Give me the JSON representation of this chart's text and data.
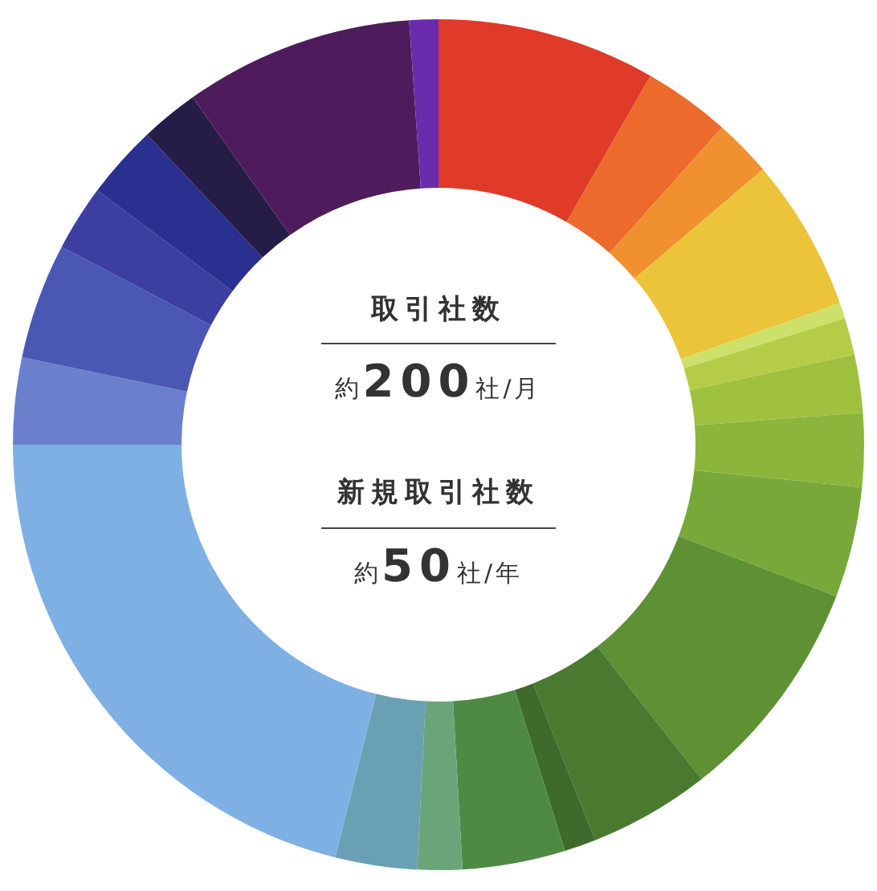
{
  "chart_data": {
    "type": "donut",
    "categories": [
      null,
      null,
      null,
      null,
      null,
      null,
      null,
      null,
      null,
      null,
      null,
      null,
      null,
      null,
      null,
      null,
      null,
      null,
      null,
      null,
      null,
      null,
      null
    ],
    "values": [
      8.3,
      3.3,
      2.2,
      5.8,
      0.6,
      1.4,
      2.2,
      2.8,
      4.2,
      8.6,
      4.6,
      1.2,
      3.9,
      1.7,
      3.1,
      21.1,
      3.3,
      4.4,
      2.5,
      2.8,
      2.2,
      8.7,
      1.1
    ],
    "colors": [
      "#e03a28",
      "#ec6a2c",
      "#f0902e",
      "#ecc43a",
      "#cde06a",
      "#b5cc48",
      "#a0c040",
      "#8cb53c",
      "#78a83a",
      "#5e9034",
      "#4a7a30",
      "#3e6a2c",
      "#4e8a44",
      "#6aa57a",
      "#6aa0b4",
      "#7fb0e4",
      "#6a80cc",
      "#4a58b4",
      "#3c3ea0",
      "#2a3090",
      "#261c48",
      "#4e1c5c",
      "#6a2cac"
    ],
    "annotations": [
      "取引社数",
      "約200社/月",
      "新規取引社数",
      "約50社/年"
    ],
    "legend": false
  }
}
